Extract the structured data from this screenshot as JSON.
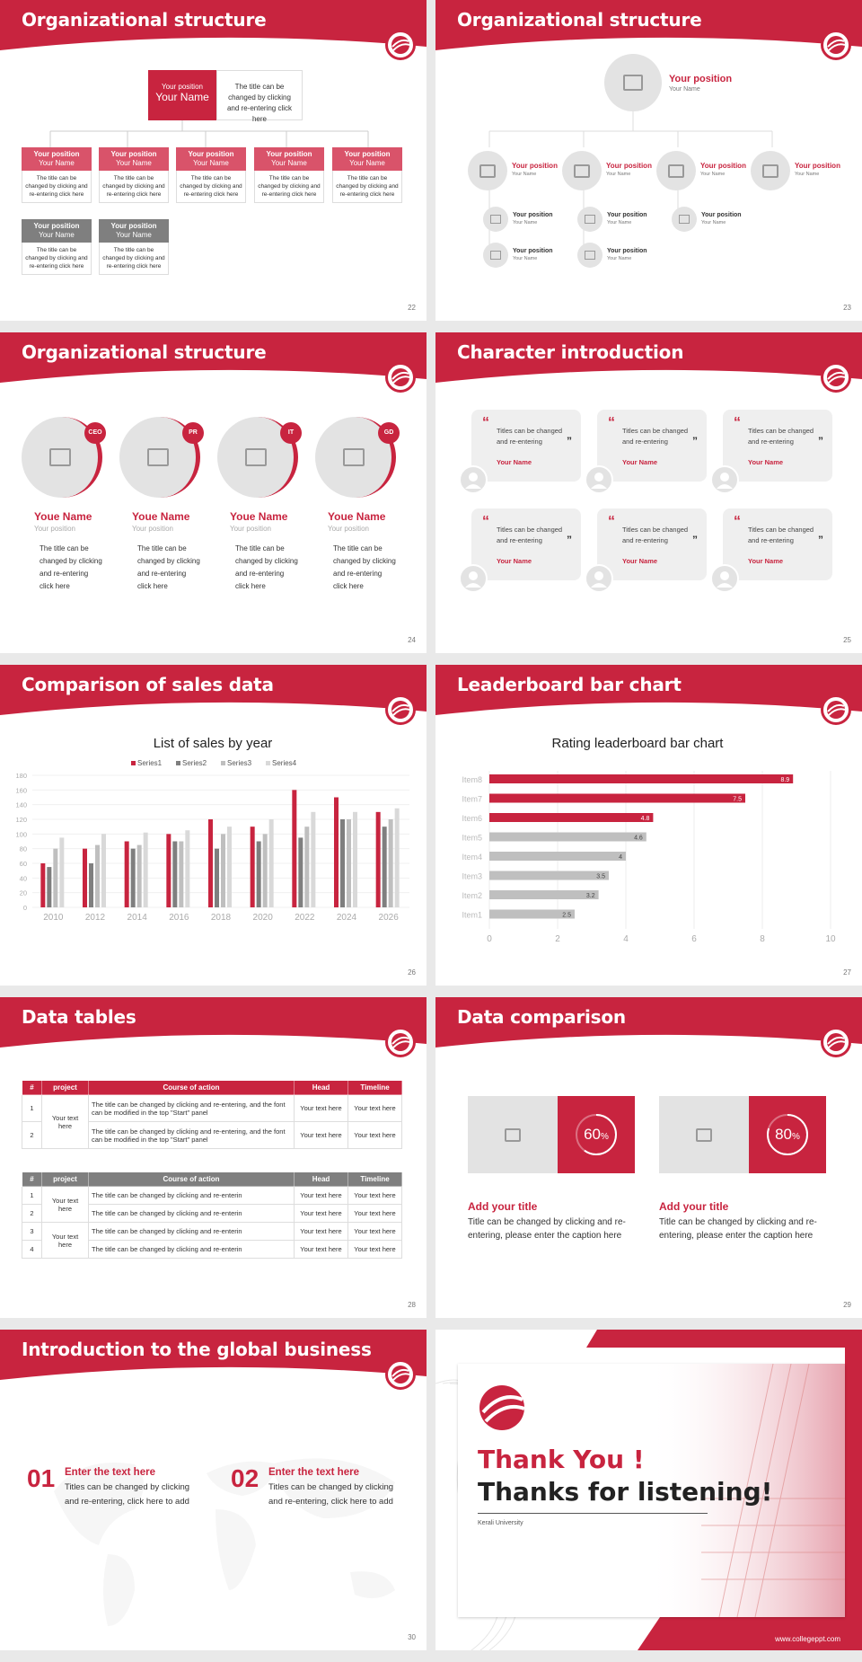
{
  "colors": {
    "accent": "#c8243f",
    "grey": "#7f7f7f",
    "light_grey": "#bfbfbf",
    "pale": "#e3e3e3"
  },
  "slides": {
    "s22": {
      "title": "Organizational structure",
      "page": "22",
      "top": {
        "position": "Your position",
        "name": "Your Name",
        "desc": "The title can be changed by clicking and re-entering click here"
      },
      "boxes": [
        {
          "position": "Your position",
          "name": "Your Name",
          "desc": "The title can be changed by clicking and re-entering click here"
        },
        {
          "position": "Your position",
          "name": "Your Name",
          "desc": "The title can be changed by clicking and re-entering click here"
        },
        {
          "position": "Your position",
          "name": "Your Name",
          "desc": "The title can be changed by clicking and re-entering click here"
        },
        {
          "position": "Your position",
          "name": "Your Name",
          "desc": "The title can be changed by clicking and re-entering click here"
        },
        {
          "position": "Your position",
          "name": "Your Name",
          "desc": "The title can be changed by clicking and re-entering click here"
        },
        {
          "position": "Your position",
          "name": "Your Name",
          "desc": "The title can be changed by clicking and re-entering click here"
        },
        {
          "position": "Your position",
          "name": "Your Name",
          "desc": "The title can be changed by clicking and re-entering click here"
        }
      ]
    },
    "s23": {
      "title": "Organizational structure",
      "page": "23",
      "top": {
        "position": "Your position",
        "name": "Your Name"
      },
      "level2": [
        {
          "position": "Your position",
          "name": "Your Name"
        },
        {
          "position": "Your position",
          "name": "Your Name"
        },
        {
          "position": "Your position",
          "name": "Your Name"
        },
        {
          "position": "Your position",
          "name": "Your Name"
        }
      ],
      "level3": [
        {
          "position": "Your position",
          "name": "Your Name"
        },
        {
          "position": "Your position",
          "name": "Your Name"
        },
        {
          "position": "Your position",
          "name": "Your Name"
        },
        {
          "position": "Your position",
          "name": "Your Name"
        },
        {
          "position": "Your position",
          "name": "Your Name"
        }
      ]
    },
    "s24": {
      "title": "Organizational structure",
      "page": "24",
      "people": [
        {
          "tag": "CEO",
          "name": "Youe Name",
          "position": "Your position",
          "desc": "The title can be changed by clicking and re-entering click here"
        },
        {
          "tag": "PR",
          "name": "Youe Name",
          "position": "Your position",
          "desc": "The title can be changed by clicking and re-entering click here"
        },
        {
          "tag": "IT",
          "name": "Youe Name",
          "position": "Your position",
          "desc": "The title can be changed by clicking and re-entering click here"
        },
        {
          "tag": "GD",
          "name": "Youe Name",
          "position": "Your position",
          "desc": "The title can be changed by clicking and re-entering click here"
        }
      ]
    },
    "s25": {
      "title": "Character introduction",
      "page": "25",
      "cards": [
        {
          "text": "Titles can be changed and re-entering",
          "name": "Your Name"
        },
        {
          "text": "Titles can be changed and re-entering",
          "name": "Your Name"
        },
        {
          "text": "Titles can be changed and re-entering",
          "name": "Your Name"
        },
        {
          "text": "Titles can be changed and re-entering",
          "name": "Your Name"
        },
        {
          "text": "Titles can be changed and re-entering",
          "name": "Your Name"
        },
        {
          "text": "Titles can be changed and re-entering",
          "name": "Your Name"
        }
      ]
    },
    "s26": {
      "title": "Comparison of sales data",
      "page": "26"
    },
    "s27": {
      "title": "Leaderboard bar chart",
      "page": "27"
    },
    "s28": {
      "title": "Data tables",
      "page": "28",
      "t1_headers": [
        "#",
        "project",
        "Course of action",
        "Head",
        "Timeline"
      ],
      "t1_rows": [
        {
          "n": "1",
          "action": "The title can be changed by clicking and re-entering, and the font can be modified in the top \"Start\" panel",
          "head": "Your text here",
          "time": "Your text here"
        },
        {
          "n": "2",
          "action": "The title can be changed by clicking and re-entering, and the font can be modified in the top \"Start\" panel",
          "head": "Your text here",
          "time": "Your text here"
        }
      ],
      "t1_project": "Your text here",
      "t2_headers": [
        "#",
        "project",
        "Course of action",
        "Head",
        "Timeline"
      ],
      "t2_rows": [
        {
          "n": "1",
          "action": "The title can be changed by clicking and re-enterin",
          "head": "Your text here",
          "time": "Your text here"
        },
        {
          "n": "2",
          "action": "The title can be changed by clicking and re-enterin",
          "head": "Your text here",
          "time": "Your text here"
        },
        {
          "n": "3",
          "action": "The title can be changed by clicking and re-enterin",
          "head": "Your text here",
          "time": "Your text here"
        },
        {
          "n": "4",
          "action": "The title can be changed by clicking and re-enterin",
          "head": "Your text here",
          "time": "Your text here"
        }
      ],
      "t2_project_a": "Your text here",
      "t2_project_b": "Your text here"
    },
    "s29": {
      "title": "Data comparison",
      "page": "29",
      "items": [
        {
          "pct": "60",
          "pct_value": 60,
          "unit": "%",
          "heading": "Add your title",
          "desc": "Title can be changed by clicking and re-entering, please enter the caption here"
        },
        {
          "pct": "80",
          "pct_value": 80,
          "unit": "%",
          "heading": "Add your title",
          "desc": "Title can be changed by clicking and re-entering, please enter the caption here"
        }
      ]
    },
    "s30": {
      "title": "Introduction to the global business",
      "page": "30",
      "items": [
        {
          "num": "01",
          "heading": "Enter the text here",
          "desc": "Titles can be changed by clicking and re-entering, click here to add"
        },
        {
          "num": "02",
          "heading": "Enter the text here",
          "desc": "Titles can be changed by clicking and re-entering, click here to add"
        }
      ]
    },
    "s31": {
      "line1": "Thank You !",
      "line2": "Thanks for listening!",
      "school": "Kerali University",
      "site": "www.collegeppt.com"
    }
  },
  "chart_data": [
    {
      "type": "bar",
      "title": "List of sales by year",
      "categories": [
        "2010",
        "2012",
        "2014",
        "2016",
        "2018",
        "2020",
        "2022",
        "2024",
        "2026"
      ],
      "series": [
        {
          "name": "Series1",
          "color": "#c8243f",
          "values": [
            60,
            80,
            90,
            100,
            120,
            110,
            160,
            150,
            130
          ]
        },
        {
          "name": "Series2",
          "color": "#7f7f7f",
          "values": [
            55,
            60,
            80,
            90,
            80,
            90,
            95,
            120,
            110
          ]
        },
        {
          "name": "Series3",
          "color": "#bfbfbf",
          "values": [
            80,
            85,
            85,
            90,
            100,
            100,
            110,
            120,
            120
          ]
        },
        {
          "name": "Series4",
          "color": "#d9d9d9",
          "values": [
            95,
            100,
            102,
            105,
            110,
            120,
            130,
            130,
            135
          ]
        }
      ],
      "yticks": [
        "0",
        "20",
        "40",
        "60",
        "80",
        "100",
        "120",
        "140",
        "160",
        "180"
      ],
      "ylim": [
        0,
        180
      ],
      "legend": "top"
    },
    {
      "type": "bar",
      "orientation": "horizontal",
      "title": "Rating leaderboard bar chart",
      "categories": [
        "Item8",
        "Item7",
        "Item6",
        "Item5",
        "Item4",
        "Item3",
        "Item2",
        "Item1"
      ],
      "values": [
        8.9,
        7.5,
        4.8,
        4.6,
        4,
        3.5,
        3.2,
        2.5
      ],
      "labels": [
        "8.9",
        "7.5",
        "4.8",
        "4.6",
        "4",
        "3.5",
        "3.2",
        "2.5"
      ],
      "highlight_count": 3,
      "xticks": [
        "0",
        "2",
        "4",
        "6",
        "8",
        "10"
      ],
      "xlim": [
        0,
        10
      ]
    }
  ]
}
